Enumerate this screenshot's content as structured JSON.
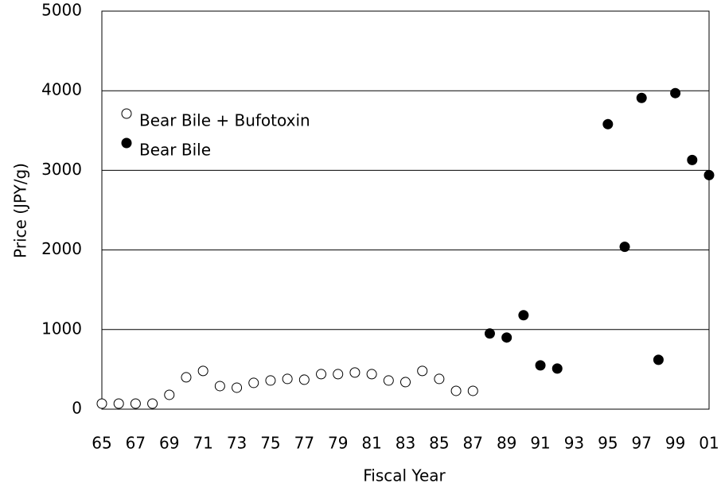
{
  "chart_data": {
    "type": "scatter",
    "x_label": "Fiscal Year",
    "y_label": "Price (JPY/g)",
    "categories": [
      "65",
      null,
      "67",
      null,
      "69",
      null,
      "71",
      null,
      "73",
      null,
      "75",
      null,
      "77",
      null,
      "79",
      null,
      "81",
      null,
      "83",
      null,
      "85",
      null,
      "87",
      null,
      "89",
      null,
      "91",
      null,
      "93",
      null,
      "95",
      null,
      "97",
      null,
      "99",
      null,
      "01"
    ],
    "series": [
      {
        "name": "Bear Bile + Bufotoxin",
        "color": "#ffffff",
        "values": [
          70,
          70,
          70,
          70,
          180,
          400,
          480,
          290,
          270,
          330,
          360,
          380,
          370,
          440,
          440,
          460,
          440,
          360,
          340,
          480,
          380,
          230,
          230,
          null,
          null,
          null,
          null,
          null,
          null,
          null,
          null,
          null,
          null,
          null,
          null,
          null,
          null
        ]
      },
      {
        "name": "Bear Bile",
        "color": "#000000",
        "values": [
          null,
          null,
          null,
          null,
          null,
          null,
          null,
          null,
          null,
          null,
          null,
          null,
          null,
          null,
          null,
          null,
          null,
          null,
          null,
          null,
          null,
          null,
          null,
          950,
          900,
          1180,
          550,
          510,
          null,
          null,
          3580,
          2040,
          3910,
          620,
          3970,
          3130,
          2940
        ]
      }
    ],
    "ylim": [
      0,
      5000
    ],
    "yticks": [
      0,
      1000,
      2000,
      3000,
      4000,
      5000
    ],
    "grid": true,
    "legend": "upper left"
  }
}
